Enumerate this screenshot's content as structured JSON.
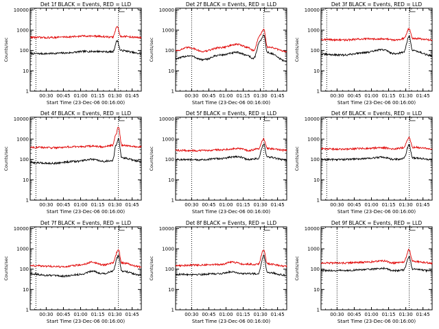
{
  "figure": {
    "background": "#ffffff",
    "colors": {
      "events": "#000000",
      "lld": "#e00000",
      "axis": "#000000"
    }
  },
  "chart_data": [
    {
      "type": "line",
      "title": "Det 1f BLACK = Events, RED = LLD",
      "xlabel": "Start Time (23-Dec-06 00:16:00)",
      "ylabel": "Counts/sec",
      "x_ticks": [
        "00:30",
        "00:45",
        "01:00",
        "01:15",
        "01:30",
        "01:45"
      ],
      "y_ticks": [
        "1",
        "10",
        "100",
        "1000",
        "10000"
      ],
      "xlim": [
        "00:16",
        "01:53"
      ],
      "ylim": [
        1,
        12000
      ],
      "y_scale": "log",
      "grid": false,
      "vertical_markers": [
        "00:21",
        "01:33"
      ],
      "series": [
        {
          "color": "#000000",
          "anchors": [
            [
              "00:16",
              70
            ],
            [
              "00:30",
              70
            ],
            [
              "00:45",
              75
            ],
            [
              "01:05",
              90
            ],
            [
              "01:15",
              90
            ],
            [
              "01:28",
              85
            ],
            [
              "01:32",
              300
            ],
            [
              "01:35",
              100
            ],
            [
              "01:53",
              70
            ]
          ]
        },
        {
          "color": "#e00000",
          "anchors": [
            [
              "00:16",
              450
            ],
            [
              "00:30",
              430
            ],
            [
              "00:50",
              470
            ],
            [
              "01:05",
              520
            ],
            [
              "01:15",
              500
            ],
            [
              "01:28",
              450
            ],
            [
              "01:32",
              1500
            ],
            [
              "01:35",
              500
            ],
            [
              "01:53",
              430
            ]
          ]
        }
      ]
    },
    {
      "type": "line",
      "title": "Det 2f BLACK = Events, RED = LLD",
      "xlabel": "Start Time (23-Dec-06 00:16:00)",
      "ylabel": "Counts/sec",
      "x_ticks": [
        "00:30",
        "00:45",
        "01:00",
        "01:15",
        "01:30",
        "01:45"
      ],
      "y_ticks": [
        "1",
        "10",
        "100",
        "1000",
        "10000"
      ],
      "xlim": [
        "00:16",
        "01:53"
      ],
      "ylim": [
        1,
        12000
      ],
      "y_scale": "log",
      "grid": false,
      "vertical_markers": [
        "00:30",
        "01:33"
      ],
      "series": [
        {
          "color": "#000000",
          "anchors": [
            [
              "00:16",
              40
            ],
            [
              "00:28",
              55
            ],
            [
              "00:40",
              35
            ],
            [
              "00:55",
              60
            ],
            [
              "01:10",
              80
            ],
            [
              "01:18",
              60
            ],
            [
              "01:24",
              40
            ],
            [
              "01:30",
              300
            ],
            [
              "01:33",
              600
            ],
            [
              "01:36",
              80
            ],
            [
              "01:53",
              30
            ]
          ]
        },
        {
          "color": "#e00000",
          "anchors": [
            [
              "00:16",
              100
            ],
            [
              "00:28",
              140
            ],
            [
              "00:40",
              90
            ],
            [
              "00:55",
              140
            ],
            [
              "01:10",
              200
            ],
            [
              "01:18",
              150
            ],
            [
              "01:24",
              100
            ],
            [
              "01:30",
              600
            ],
            [
              "01:33",
              1100
            ],
            [
              "01:36",
              150
            ],
            [
              "01:53",
              90
            ]
          ]
        }
      ]
    },
    {
      "type": "line",
      "title": "Det 3f BLACK = Events, RED = LLD",
      "xlabel": "Start Time (23-Dec-06 00:16:00)",
      "ylabel": "Counts/sec",
      "x_ticks": [
        "00:30",
        "00:45",
        "01:00",
        "01:15",
        "01:30",
        "01:45"
      ],
      "y_ticks": [
        "1",
        "10",
        "100",
        "1000",
        "10000"
      ],
      "xlim": [
        "00:16",
        "01:53"
      ],
      "ylim": [
        1,
        12000
      ],
      "y_scale": "log",
      "grid": false,
      "vertical_markers": [
        "00:21",
        "01:33"
      ],
      "series": [
        {
          "color": "#000000",
          "anchors": [
            [
              "00:16",
              65
            ],
            [
              "00:35",
              60
            ],
            [
              "00:55",
              80
            ],
            [
              "01:10",
              110
            ],
            [
              "01:20",
              70
            ],
            [
              "01:28",
              80
            ],
            [
              "01:33",
              500
            ],
            [
              "01:36",
              100
            ],
            [
              "01:53",
              55
            ]
          ]
        },
        {
          "color": "#e00000",
          "anchors": [
            [
              "00:16",
              350
            ],
            [
              "00:35",
              330
            ],
            [
              "00:55",
              370
            ],
            [
              "01:10",
              380
            ],
            [
              "01:20",
              330
            ],
            [
              "01:28",
              380
            ],
            [
              "01:33",
              1200
            ],
            [
              "01:36",
              400
            ],
            [
              "01:53",
              330
            ]
          ]
        }
      ]
    },
    {
      "type": "line",
      "title": "Det 4f BLACK = Events, RED = LLD",
      "xlabel": "Start Time (23-Dec-06 00:16:00)",
      "ylabel": "Counts/sec",
      "x_ticks": [
        "00:30",
        "00:45",
        "01:00",
        "01:15",
        "01:30",
        "01:45"
      ],
      "y_ticks": [
        "1",
        "10",
        "100",
        "1000",
        "10000"
      ],
      "xlim": [
        "00:16",
        "01:53"
      ],
      "ylim": [
        1,
        12000
      ],
      "y_scale": "log",
      "grid": false,
      "vertical_markers": [
        "00:21",
        "01:33"
      ],
      "series": [
        {
          "color": "#000000",
          "anchors": [
            [
              "00:16",
              70
            ],
            [
              "00:35",
              65
            ],
            [
              "00:55",
              80
            ],
            [
              "01:10",
              100
            ],
            [
              "01:20",
              80
            ],
            [
              "01:28",
              90
            ],
            [
              "01:31",
              500
            ],
            [
              "01:33",
              1000
            ],
            [
              "01:36",
              120
            ],
            [
              "01:53",
              80
            ]
          ]
        },
        {
          "color": "#e00000",
          "anchors": [
            [
              "00:16",
              400
            ],
            [
              "00:35",
              380
            ],
            [
              "00:55",
              420
            ],
            [
              "01:10",
              450
            ],
            [
              "01:20",
              420
            ],
            [
              "01:28",
              500
            ],
            [
              "01:31",
              1800
            ],
            [
              "01:33",
              4000
            ],
            [
              "01:36",
              500
            ],
            [
              "01:53",
              420
            ]
          ]
        }
      ]
    },
    {
      "type": "line",
      "title": "Det 5f BLACK = Events, RED = LLD",
      "xlabel": "Start Time (23-Dec-06 00:16:00)",
      "ylabel": "Counts/sec",
      "x_ticks": [
        "00:30",
        "00:45",
        "01:00",
        "01:15",
        "01:30",
        "01:45"
      ],
      "y_ticks": [
        "1",
        "10",
        "100",
        "1000",
        "10000"
      ],
      "xlim": [
        "00:16",
        "01:53"
      ],
      "ylim": [
        1,
        12000
      ],
      "y_scale": "log",
      "grid": false,
      "vertical_markers": [
        "00:30",
        "01:33"
      ],
      "series": [
        {
          "color": "#000000",
          "anchors": [
            [
              "00:16",
              100
            ],
            [
              "00:35",
              95
            ],
            [
              "00:55",
              110
            ],
            [
              "01:10",
              140
            ],
            [
              "01:20",
              100
            ],
            [
              "01:28",
              110
            ],
            [
              "01:33",
              550
            ],
            [
              "01:36",
              130
            ],
            [
              "01:53",
              95
            ]
          ]
        },
        {
          "color": "#e00000",
          "anchors": [
            [
              "00:16",
              280
            ],
            [
              "00:35",
              270
            ],
            [
              "00:55",
              300
            ],
            [
              "01:10",
              350
            ],
            [
              "01:20",
              280
            ],
            [
              "01:28",
              330
            ],
            [
              "01:33",
              1000
            ],
            [
              "01:36",
              350
            ],
            [
              "01:53",
              280
            ]
          ]
        }
      ]
    },
    {
      "type": "line",
      "title": "Det 6f BLACK = Events, RED = LLD",
      "xlabel": "Start Time (23-Dec-06 00:16:00)",
      "ylabel": "Counts/sec",
      "x_ticks": [
        "00:30",
        "00:45",
        "01:00",
        "01:15",
        "01:30",
        "01:45"
      ],
      "y_ticks": [
        "1",
        "10",
        "100",
        "1000",
        "10000"
      ],
      "xlim": [
        "00:16",
        "01:53"
      ],
      "ylim": [
        1,
        12000
      ],
      "y_scale": "log",
      "grid": false,
      "vertical_markers": [
        "00:21",
        "01:33"
      ],
      "series": [
        {
          "color": "#000000",
          "anchors": [
            [
              "00:16",
              100
            ],
            [
              "00:35",
              100
            ],
            [
              "00:55",
              110
            ],
            [
              "01:10",
              130
            ],
            [
              "01:20",
              100
            ],
            [
              "01:28",
              110
            ],
            [
              "01:33",
              500
            ],
            [
              "01:36",
              120
            ],
            [
              "01:53",
              100
            ]
          ]
        },
        {
          "color": "#e00000",
          "anchors": [
            [
              "00:16",
              330
            ],
            [
              "00:35",
              320
            ],
            [
              "00:55",
              350
            ],
            [
              "01:10",
              380
            ],
            [
              "01:20",
              330
            ],
            [
              "01:28",
              380
            ],
            [
              "01:33",
              1200
            ],
            [
              "01:36",
              400
            ],
            [
              "01:53",
              330
            ]
          ]
        }
      ]
    },
    {
      "type": "line",
      "title": "Det 7f BLACK = Events, RED = LLD",
      "xlabel": "Start Time (23-Dec-06 00:16:00)",
      "ylabel": "Counts/sec",
      "x_ticks": [
        "00:30",
        "00:45",
        "01:00",
        "01:15",
        "01:30",
        "01:45"
      ],
      "y_ticks": [
        "1",
        "10",
        "100",
        "1000",
        "10000"
      ],
      "xlim": [
        "00:16",
        "01:53"
      ],
      "ylim": [
        1,
        12000
      ],
      "y_scale": "log",
      "grid": false,
      "vertical_markers": [
        "00:21",
        "01:33"
      ],
      "series": [
        {
          "color": "#000000",
          "anchors": [
            [
              "00:16",
              60
            ],
            [
              "00:30",
              50
            ],
            [
              "00:45",
              45
            ],
            [
              "01:00",
              55
            ],
            [
              "01:10",
              80
            ],
            [
              "01:20",
              60
            ],
            [
              "01:28",
              80
            ],
            [
              "01:33",
              450
            ],
            [
              "01:36",
              80
            ],
            [
              "01:53",
              50
            ]
          ]
        },
        {
          "color": "#e00000",
          "anchors": [
            [
              "00:16",
              150
            ],
            [
              "00:30",
              140
            ],
            [
              "00:45",
              130
            ],
            [
              "01:00",
              160
            ],
            [
              "01:10",
              220
            ],
            [
              "01:20",
              160
            ],
            [
              "01:28",
              200
            ],
            [
              "01:33",
              900
            ],
            [
              "01:36",
              200
            ],
            [
              "01:53",
              130
            ]
          ]
        }
      ]
    },
    {
      "type": "line",
      "title": "Det 8f BLACK = Events, RED = LLD",
      "xlabel": "Start Time (23-Dec-06 00:16:00)",
      "ylabel": "Counts/sec",
      "x_ticks": [
        "00:30",
        "00:45",
        "01:00",
        "01:15",
        "01:30",
        "01:45"
      ],
      "y_ticks": [
        "1",
        "10",
        "100",
        "1000",
        "10000"
      ],
      "xlim": [
        "00:16",
        "01:53"
      ],
      "ylim": [
        1,
        12000
      ],
      "y_scale": "log",
      "grid": false,
      "vertical_markers": [
        "00:30",
        "01:33"
      ],
      "series": [
        {
          "color": "#000000",
          "anchors": [
            [
              "00:16",
              55
            ],
            [
              "00:35",
              55
            ],
            [
              "00:55",
              60
            ],
            [
              "01:05",
              75
            ],
            [
              "01:15",
              60
            ],
            [
              "01:28",
              60
            ],
            [
              "01:33",
              450
            ],
            [
              "01:36",
              70
            ],
            [
              "01:53",
              50
            ]
          ]
        },
        {
          "color": "#e00000",
          "anchors": [
            [
              "00:16",
              150
            ],
            [
              "00:35",
              160
            ],
            [
              "00:55",
              170
            ],
            [
              "01:05",
              220
            ],
            [
              "01:15",
              180
            ],
            [
              "01:28",
              170
            ],
            [
              "01:33",
              900
            ],
            [
              "01:36",
              180
            ],
            [
              "01:53",
              140
            ]
          ]
        }
      ]
    },
    {
      "type": "line",
      "title": "Det 9f BLACK = Events, RED = LLD",
      "xlabel": "Start Time (23-Dec-06 00:16:00)",
      "ylabel": "Counts/sec",
      "x_ticks": [
        "00:30",
        "00:45",
        "01:00",
        "01:15",
        "01:30",
        "01:45"
      ],
      "y_ticks": [
        "1",
        "10",
        "100",
        "1000",
        "10000"
      ],
      "xlim": [
        "00:16",
        "01:53"
      ],
      "ylim": [
        1,
        12000
      ],
      "y_scale": "log",
      "grid": false,
      "vertical_markers": [
        "00:30",
        "01:33"
      ],
      "series": [
        {
          "color": "#000000",
          "anchors": [
            [
              "00:16",
              85
            ],
            [
              "00:35",
              85
            ],
            [
              "00:55",
              95
            ],
            [
              "01:10",
              110
            ],
            [
              "01:20",
              85
            ],
            [
              "01:28",
              90
            ],
            [
              "01:33",
              400
            ],
            [
              "01:36",
              100
            ],
            [
              "01:53",
              80
            ]
          ]
        },
        {
          "color": "#e00000",
          "anchors": [
            [
              "00:16",
              200
            ],
            [
              "00:35",
              200
            ],
            [
              "00:55",
              220
            ],
            [
              "01:10",
              260
            ],
            [
              "01:20",
              200
            ],
            [
              "01:28",
              220
            ],
            [
              "01:33",
              900
            ],
            [
              "01:36",
              240
            ],
            [
              "01:53",
              200
            ]
          ]
        }
      ]
    }
  ]
}
